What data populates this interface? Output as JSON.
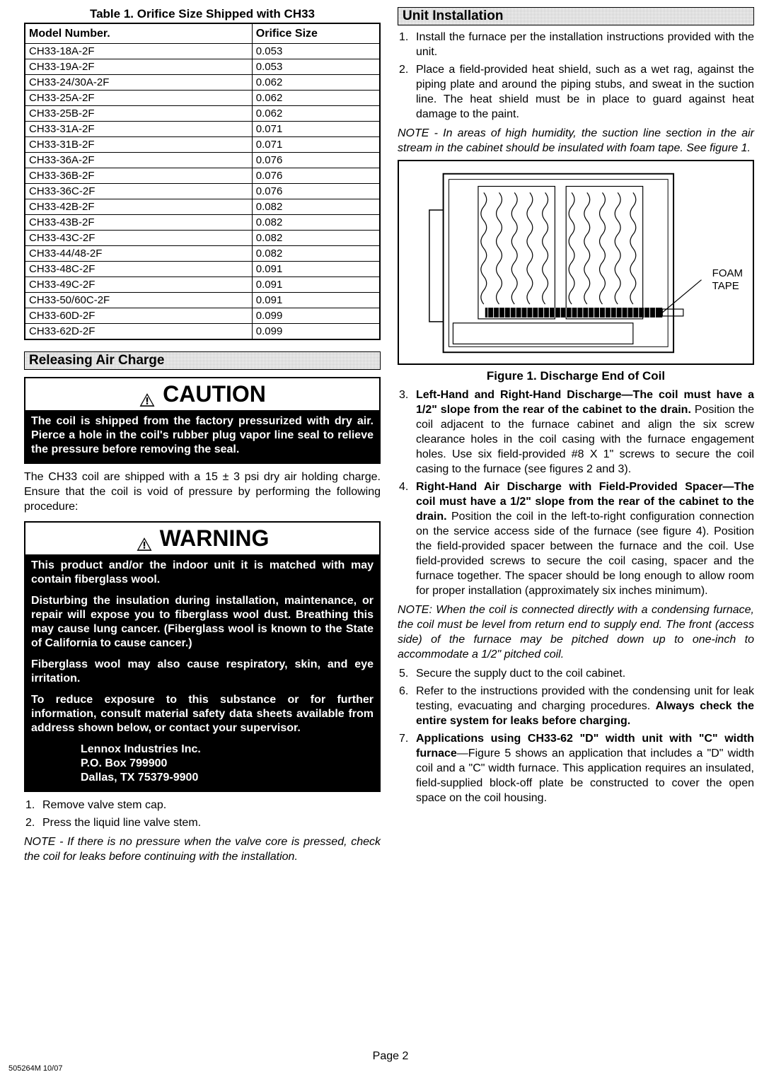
{
  "table": {
    "title": "Table 1. Orifice Size Shipped with CH33",
    "col1": "Model Number.",
    "col2": "Orifice Size",
    "rows": [
      [
        "CH33-18A-2F",
        "0.053"
      ],
      [
        "CH33-19A-2F",
        "0.053"
      ],
      [
        "CH33-24/30A-2F",
        "0.062"
      ],
      [
        "CH33-25A-2F",
        "0.062"
      ],
      [
        "CH33-25B-2F",
        "0.062"
      ],
      [
        "CH33-31A-2F",
        "0.071"
      ],
      [
        "CH33-31B-2F",
        "0.071"
      ],
      [
        "CH33-36A-2F",
        "0.076"
      ],
      [
        "CH33-36B-2F",
        "0.076"
      ],
      [
        "CH33-36C-2F",
        "0.076"
      ],
      [
        "CH33-42B-2F",
        "0.082"
      ],
      [
        "CH33-43B-2F",
        "0.082"
      ],
      [
        "CH33-43C-2F",
        "0.082"
      ],
      [
        "CH33-44/48-2F",
        "0.082"
      ],
      [
        "CH33-48C-2F",
        "0.091"
      ],
      [
        "CH33-49C-2F",
        "0.091"
      ],
      [
        "CH33-50/60C-2F",
        "0.091"
      ],
      [
        "CH33-60D-2F",
        "0.099"
      ],
      [
        "CH33-62D-2F",
        "0.099"
      ]
    ]
  },
  "sect_release": "Releasing Air Charge",
  "sect_unit": "Unit Installation",
  "caution": {
    "head": "CAUTION",
    "body": "The coil is shipped from the factory pressurized with dry air. Pierce a hole in the coil's rubber plug vapor line seal to relieve the pressure before removing the seal."
  },
  "p_after_caution": "The CH33 coil are shipped with a 15 ± 3 psi dry air holding charge. Ensure that the coil is void of pressure by performing the following procedure:",
  "warning": {
    "head": "WARNING",
    "p1": "This product and/or the indoor unit it is matched with may contain fiberglass wool.",
    "p2": "Disturbing the insulation during installation, maintenance, or repair will expose you to fiberglass wool dust. Breathing this may cause lung cancer. (Fiberglass wool is known to the State of California to cause cancer.)",
    "p3": "Fiberglass wool may also cause respiratory, skin, and eye irritation.",
    "p4": "To reduce exposure to this substance or for further information, consult material safety data sheets available from address shown below, or contact your supervisor.",
    "addr1": "Lennox Industries Inc.",
    "addr2": "P.O. Box 799900",
    "addr3": "Dallas, TX 75379-9900"
  },
  "left_steps": {
    "s1": "Remove valve stem cap.",
    "s2": "Press the liquid line valve stem."
  },
  "left_note": "NOTE - If there is no pressure when the valve core is pressed, check the coil for leaks before continuing with the installation.",
  "right_steps12": {
    "s1": "Install the furnace per the installation instructions provided with the unit.",
    "s2": "Place a field-provided heat shield, such as a wet rag, against the piping plate and around the piping stubs, and sweat in the suction line. The heat shield must be in place to guard against heat damage to the paint."
  },
  "right_note1": "NOTE - In areas of high humidity, the suction line section in the air stream in the cabinet should be insulated with foam tape. See figure 1.",
  "foam": "FOAM\nTAPE",
  "fig1_cap": "Figure 1. Discharge End of Coil",
  "right_steps34": {
    "s3_bold": "Left-Hand and Right-Hand Discharge—The coil must have a 1/2\" slope from the rear of the cabinet to the drain.",
    "s3_rest": " Position the coil adjacent to the furnace cabinet and align the six screw clearance holes in the coil casing with the furnace engagement holes. Use six field-provided #8 X 1\" screws to secure the coil casing to the furnace (see figures 2 and 3).",
    "s4_bold": "Right-Hand Air Discharge with Field-Provided Spacer—The coil must have a 1/2\" slope from the rear of the cabinet to the drain.",
    "s4_rest": " Position the coil in the left-to-right configuration connection on the service access side of the furnace (see figure 4). Position the field-provided spacer between the furnace and the coil. Use field-provided screws to secure the coil casing, spacer and the furnace together. The spacer should be long enough to allow room for proper installation (approximately six inches minimum)."
  },
  "right_note2": "NOTE: When the coil is connected directly with a condensing furnace, the coil must be level from return end to supply end. The front (access side) of the furnace may be pitched down up to one-inch to accommodate a 1/2\" pitched coil.",
  "right_steps567": {
    "s5": "Secure the supply duct to the coil cabinet.",
    "s6a": "Refer to the instructions provided with the condensing unit for leak testing, evacuating and charging procedures. ",
    "s6b": "Always check the entire system for leaks before charging.",
    "s7_bold": "Applications using CH33-62 \"D\" width unit with \"C\" width furnace",
    "s7_rest": "—Figure 5 shows an application that includes a \"D\" width coil and a \"C\" width furnace. This application requires an insulated, field-supplied block-off plate be constructed to cover the open space on the coil housing."
  },
  "page": "Page 2",
  "doc": "505264M 10/07"
}
